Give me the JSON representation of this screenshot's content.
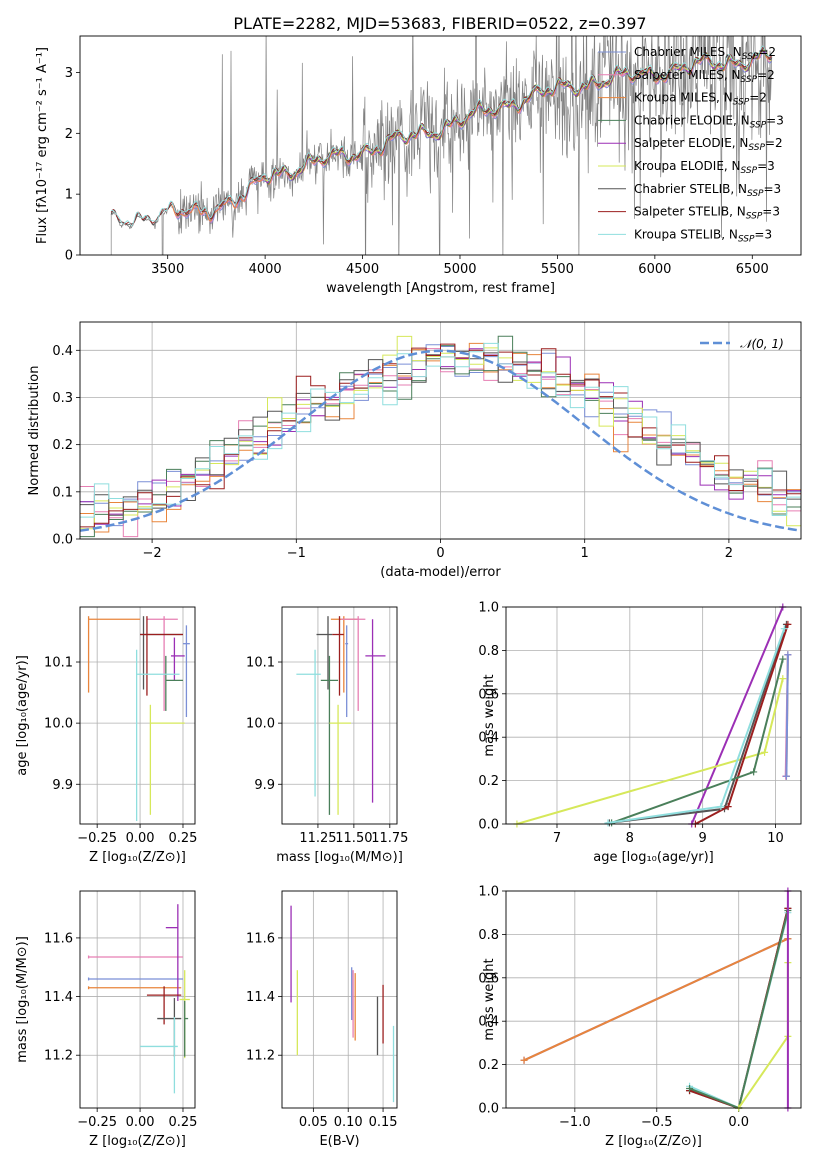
{
  "title": "PLATE=2282, MJD=53683, FIBERID=0522, z=0.397",
  "colors": {
    "Chabrier MILES": "#7b8fd6",
    "Salpeter MILES": "#e67fb3",
    "Kroupa MILES": "#e8853c",
    "Chabrier ELODIE": "#4a7f5a",
    "Salpeter ELODIE": "#9b2fb5",
    "Kroupa ELODIE": "#d6e85a",
    "Chabrier STELIB": "#555555",
    "Salpeter STELIB": "#9b1f1f",
    "Kroupa STELIB": "#8fdede",
    "normal": "#5f8fd6",
    "data": "#808080"
  },
  "legend_spectrum": [
    {
      "name": "Chabrier MILES",
      "nssp": "2"
    },
    {
      "name": "Salpeter MILES",
      "nssp": "2"
    },
    {
      "name": "Kroupa MILES",
      "nssp": "2"
    },
    {
      "name": "Chabrier ELODIE",
      "nssp": "3"
    },
    {
      "name": "Salpeter ELODIE",
      "nssp": "2"
    },
    {
      "name": "Kroupa ELODIE",
      "nssp": "3"
    },
    {
      "name": "Chabrier STELIB",
      "nssp": "3"
    },
    {
      "name": "Salpeter STELIB",
      "nssp": "3"
    },
    {
      "name": "Kroupa STELIB",
      "nssp": "3"
    }
  ],
  "chart_data": [
    {
      "panel": "spectrum",
      "type": "line",
      "xlabel": "wavelength [Angstrom, rest frame]",
      "ylabel": "Flux [fλ10⁻¹⁷ erg cm⁻² s⁻¹ A⁻¹]",
      "xlim": [
        3050,
        6750
      ],
      "ylim": [
        0,
        3.6
      ],
      "xticks": [
        3500,
        4000,
        4500,
        5000,
        5500,
        6000,
        6500
      ],
      "yticks": [
        0,
        1,
        2,
        3
      ],
      "continuum_knots": [
        [
          3210,
          0.55
        ],
        [
          3500,
          0.65
        ],
        [
          3700,
          0.75
        ],
        [
          3900,
          0.95
        ],
        [
          4000,
          1.3
        ],
        [
          4300,
          1.55
        ],
        [
          4600,
          1.8
        ],
        [
          5000,
          2.2
        ],
        [
          5300,
          2.55
        ],
        [
          5600,
          2.8
        ],
        [
          6000,
          3.0
        ],
        [
          6300,
          3.15
        ],
        [
          6600,
          3.25
        ]
      ],
      "model_start": {
        "MILES": 3520,
        "ELODIE": 4000,
        "STELIB": 3210
      }
    },
    {
      "panel": "residuals",
      "type": "line",
      "xlabel": "(data-model)/error",
      "ylabel": "Normed distribution",
      "xlim": [
        -2.5,
        2.5
      ],
      "ylim": [
        0,
        0.46
      ],
      "xticks": [
        -2,
        -1,
        0,
        1,
        2
      ],
      "yticks": [
        0.0,
        0.1,
        0.2,
        0.3,
        0.4
      ],
      "legend": "𝒩(0, 1)",
      "bin_width": 0.1,
      "normal_curve": {
        "mean": 0,
        "sigma": 1
      }
    },
    {
      "panel": "age_vs_Z",
      "type": "scatter",
      "xlabel": "Z [log₁₀(Z/Z⊙)]",
      "ylabel": "age  [log₁₀(age/yr)]",
      "xlim": [
        -0.35,
        0.32
      ],
      "ylim": [
        9.835,
        10.19
      ],
      "xticks": [
        -0.25,
        0.0,
        0.25
      ],
      "yticks": [
        9.9,
        10.0,
        10.1
      ],
      "points": [
        {
          "model": "Kroupa MILES",
          "x": -0.3,
          "xerr": [
            0,
            0.3
          ],
          "y": 10.17,
          "yerr": [
            0.12,
            0.005
          ]
        },
        {
          "model": "Salpeter MILES",
          "x": 0.14,
          "xerr": [
            0.1,
            0.08
          ],
          "y": 10.17,
          "yerr": [
            0.15,
            0.005
          ]
        },
        {
          "model": "Chabrier MILES",
          "x": 0.27,
          "xerr": [
            0.02,
            0.02
          ],
          "y": 10.13,
          "yerr": [
            0.12,
            0.03
          ]
        },
        {
          "model": "Chabrier STELIB",
          "x": 0.02,
          "xerr": [
            0.02,
            0.23
          ],
          "y": 10.145,
          "yerr": [
            0.09,
            0.03
          ]
        },
        {
          "model": "Salpeter STELIB",
          "x": 0.04,
          "xerr": [
            0.04,
            0.21
          ],
          "y": 10.145,
          "yerr": [
            0.1,
            0.03
          ]
        },
        {
          "model": "Salpeter ELODIE",
          "x": 0.2,
          "xerr": [
            0.02,
            0.06
          ],
          "y": 10.11,
          "yerr": [
            0.04,
            0.03
          ]
        },
        {
          "model": "Chabrier ELODIE",
          "x": 0.15,
          "xerr": [
            0.0,
            0.1
          ],
          "y": 10.07,
          "yerr": [
            0.05,
            0.04
          ]
        },
        {
          "model": "Kroupa STELIB",
          "x": -0.02,
          "xerr": [
            0.0,
            0.25
          ],
          "y": 10.08,
          "yerr": [
            0.24,
            0.04
          ]
        },
        {
          "model": "Kroupa ELODIE",
          "x": 0.06,
          "xerr": [
            0.0,
            0.2
          ],
          "y": 10.0,
          "yerr": [
            0.15,
            0.03
          ]
        }
      ]
    },
    {
      "panel": "age_vs_mass",
      "type": "scatter",
      "xlabel": "mass [log₁₀(M/M⊙)]",
      "ylabel": "",
      "xlim": [
        11.0,
        11.8
      ],
      "ylim": [
        9.835,
        10.19
      ],
      "xticks": [
        11.25,
        11.5,
        11.75
      ],
      "yticks": [
        9.9,
        10.0,
        10.1
      ],
      "points": [
        {
          "model": "Kroupa MILES",
          "x": 11.43,
          "xerr": [
            0.09,
            0.1
          ],
          "y": 10.17,
          "yerr": [
            0.12,
            0.005
          ]
        },
        {
          "model": "Salpeter MILES",
          "x": 11.53,
          "xerr": [
            0.12,
            0.05
          ],
          "y": 10.17,
          "yerr": [
            0.15,
            0.005
          ]
        },
        {
          "model": "Chabrier MILES",
          "x": 11.45,
          "xerr": [
            0.01,
            0.01
          ],
          "y": 10.13,
          "yerr": [
            0.12,
            0.03
          ]
        },
        {
          "model": "Chabrier STELIB",
          "x": 11.32,
          "xerr": [
            0.08,
            0.03
          ],
          "y": 10.145,
          "yerr": [
            0.09,
            0.03
          ]
        },
        {
          "model": "Salpeter STELIB",
          "x": 11.4,
          "xerr": [
            0.05,
            0.03
          ],
          "y": 10.145,
          "yerr": [
            0.1,
            0.03
          ]
        },
        {
          "model": "Salpeter ELODIE",
          "x": 11.63,
          "xerr": [
            0.05,
            0.09
          ],
          "y": 10.11,
          "yerr": [
            0.24,
            0.06
          ]
        },
        {
          "model": "Chabrier ELODIE",
          "x": 11.33,
          "xerr": [
            0.06,
            0.06
          ],
          "y": 10.07,
          "yerr": [
            0.22,
            0.04
          ]
        },
        {
          "model": "Kroupa STELIB",
          "x": 11.23,
          "xerr": [
            0.13,
            0.04
          ],
          "y": 10.08,
          "yerr": [
            0.2,
            0.04
          ]
        },
        {
          "model": "Kroupa ELODIE",
          "x": 11.39,
          "xerr": [
            0.06,
            0.09
          ],
          "y": 10.0,
          "yerr": [
            0.15,
            0.03
          ]
        }
      ]
    },
    {
      "panel": "weight_vs_age",
      "type": "line",
      "xlabel": "age  [log₁₀(age/yr)]",
      "ylabel": "mass weight",
      "xlim": [
        6.3,
        10.35
      ],
      "ylim": [
        0,
        1
      ],
      "xticks": [
        7,
        8,
        9,
        10
      ],
      "yticks": [
        0.0,
        0.2,
        0.4,
        0.6,
        0.8,
        1.0
      ],
      "series": [
        {
          "model": "Salpeter ELODIE",
          "x": [
            8.85,
            10.1
          ],
          "y": [
            0.0,
            1.0
          ]
        },
        {
          "model": "Kroupa ELODIE",
          "x": [
            6.45,
            9.85,
            10.1
          ],
          "y": [
            0.0,
            0.33,
            0.67
          ]
        },
        {
          "model": "Kroupa MILES",
          "x": [
            10.15,
            10.17
          ],
          "y": [
            0.22,
            0.78
          ]
        },
        {
          "model": "Salpeter MILES",
          "x": [
            10.14,
            10.17
          ],
          "y": [
            0.22,
            0.78
          ]
        },
        {
          "model": "Chabrier MILES",
          "x": [
            10.15,
            10.17
          ],
          "y": [
            0.22,
            0.78
          ]
        },
        {
          "model": "Chabrier STELIB",
          "x": [
            7.72,
            9.3,
            10.15
          ],
          "y": [
            0.005,
            0.07,
            0.92
          ]
        },
        {
          "model": "Salpeter STELIB",
          "x": [
            8.9,
            9.35,
            10.17
          ],
          "y": [
            0.0,
            0.08,
            0.92
          ]
        },
        {
          "model": "Chabrier ELODIE",
          "x": [
            7.75,
            9.7,
            10.1
          ],
          "y": [
            0.005,
            0.24,
            0.76
          ]
        },
        {
          "model": "Kroupa STELIB",
          "x": [
            7.7,
            9.25,
            10.12
          ],
          "y": [
            0.005,
            0.08,
            0.9
          ]
        }
      ]
    },
    {
      "panel": "mass_vs_Z",
      "type": "scatter",
      "xlabel": "Z [log₁₀(Z/Z⊙)]",
      "ylabel": "mass [log₁₀(M/M⊙)]",
      "xlim": [
        -0.35,
        0.32
      ],
      "ylim": [
        11.02,
        11.76
      ],
      "xticks": [
        -0.25,
        0.0,
        0.25
      ],
      "yticks": [
        11.2,
        11.4,
        11.6
      ],
      "points": [
        {
          "model": "Salpeter MILES",
          "x": -0.3,
          "xerr": [
            0,
            0.55
          ],
          "y": 11.535,
          "yerr": [
            0.005,
            0.005
          ]
        },
        {
          "model": "Chabrier MILES",
          "x": -0.3,
          "xerr": [
            0,
            0.55
          ],
          "y": 11.46,
          "yerr": [
            0.005,
            0.005
          ]
        },
        {
          "model": "Kroupa MILES",
          "x": -0.3,
          "xerr": [
            0,
            0.54
          ],
          "y": 11.43,
          "yerr": [
            0.005,
            0.005
          ]
        },
        {
          "model": "Salpeter ELODIE",
          "x": 0.22,
          "xerr": [
            0.07,
            0.0
          ],
          "y": 11.635,
          "yerr": [
            0.25,
            0.08
          ]
        },
        {
          "model": "Kroupa ELODIE",
          "x": 0.26,
          "xerr": [
            0.03,
            0.03
          ],
          "y": 11.39,
          "yerr": [
            0.2,
            0.1
          ]
        },
        {
          "model": "Salpeter STELIB",
          "x": 0.14,
          "xerr": [
            0.1,
            0.1
          ],
          "y": 11.405,
          "yerr": [
            0.1,
            0.03
          ]
        },
        {
          "model": "Chabrier STELIB",
          "x": 0.2,
          "xerr": [
            0.1,
            0.04
          ],
          "y": 11.325,
          "yerr": [
            0.13,
            0.07
          ]
        },
        {
          "model": "Kroupa STELIB",
          "x": 0.2,
          "xerr": [
            0.2,
            0.02
          ],
          "y": 11.23,
          "yerr": [
            0.16,
            0.1
          ]
        },
        {
          "model": "Chabrier ELODIE",
          "x": 0.26,
          "xerr": [
            0.0,
            0.02
          ],
          "y": 11.325,
          "yerr": [
            0.13,
            0.06
          ]
        }
      ]
    },
    {
      "panel": "mass_vs_EBV",
      "type": "scatter",
      "xlabel": "E(B-V)",
      "ylabel": "",
      "xlim": [
        0.005,
        0.17
      ],
      "ylim": [
        11.02,
        11.76
      ],
      "xticks": [
        0.05,
        0.1,
        0.15
      ],
      "yticks": [
        11.2,
        11.4,
        11.6
      ],
      "points": [
        {
          "model": "Salpeter ELODIE",
          "x": 0.018,
          "y": 11.54,
          "yerr": [
            0.16,
            0.17
          ]
        },
        {
          "model": "Kroupa ELODIE",
          "x": 0.027,
          "y": 11.35,
          "yerr": [
            0.15,
            0.14
          ]
        },
        {
          "model": "Chabrier MILES",
          "x": 0.105,
          "y": 11.41,
          "yerr": [
            0.09,
            0.09
          ]
        },
        {
          "model": "Salpeter MILES",
          "x": 0.107,
          "y": 11.36,
          "yerr": [
            0.1,
            0.13
          ]
        },
        {
          "model": "Kroupa MILES",
          "x": 0.11,
          "y": 11.35,
          "yerr": [
            0.1,
            0.13
          ]
        },
        {
          "model": "Chabrier STELIB",
          "x": 0.142,
          "y": 11.3,
          "yerr": [
            0.1,
            0.1
          ]
        },
        {
          "model": "Salpeter STELIB",
          "x": 0.15,
          "y": 11.34,
          "yerr": [
            0.1,
            0.1
          ]
        },
        {
          "model": "Kroupa STELIB",
          "x": 0.165,
          "y": 11.18,
          "yerr": [
            0.14,
            0.12
          ]
        }
      ]
    },
    {
      "panel": "weight_vs_Z",
      "type": "line",
      "xlabel": "Z [log₁₀(Z/Z⊙)]",
      "ylabel": "mass weight",
      "xlim": [
        -1.42,
        0.38
      ],
      "ylim": [
        0,
        1
      ],
      "xticks": [
        -1.0,
        -0.5,
        0.0
      ],
      "yticks": [
        0.0,
        0.2,
        0.4,
        0.6,
        0.8,
        1.0
      ],
      "series": [
        {
          "model": "Salpeter MILES",
          "x": [
            -1.31,
            0.3
          ],
          "y": [
            0.22,
            0.78
          ]
        },
        {
          "model": "Chabrier MILES",
          "x": [
            -1.31,
            0.3
          ],
          "y": [
            0.22,
            0.78
          ]
        },
        {
          "model": "Kroupa MILES",
          "x": [
            -1.31,
            0.3
          ],
          "y": [
            0.22,
            0.78
          ]
        },
        {
          "model": "Chabrier STELIB",
          "x": [
            -0.3,
            0.0,
            0.3
          ],
          "y": [
            0.08,
            0.0,
            0.92
          ]
        },
        {
          "model": "Salpeter STELIB",
          "x": [
            -0.3,
            0.0,
            0.3
          ],
          "y": [
            0.08,
            0.0,
            0.92
          ]
        },
        {
          "model": "Kroupa STELIB",
          "x": [
            -0.3,
            0.0,
            0.3
          ],
          "y": [
            0.1,
            0.0,
            0.9
          ]
        },
        {
          "model": "Chabrier ELODIE",
          "x": [
            -0.3,
            0.0,
            0.3
          ],
          "y": [
            0.09,
            0.0,
            0.91
          ]
        },
        {
          "model": "Kroupa ELODIE",
          "x": [
            0.0,
            0.3,
            0.3
          ],
          "y": [
            0.0,
            0.33,
            0.67
          ]
        },
        {
          "model": "Salpeter ELODIE",
          "x": [
            0.3,
            0.3
          ],
          "y": [
            0.0,
            1.0
          ]
        }
      ]
    }
  ]
}
